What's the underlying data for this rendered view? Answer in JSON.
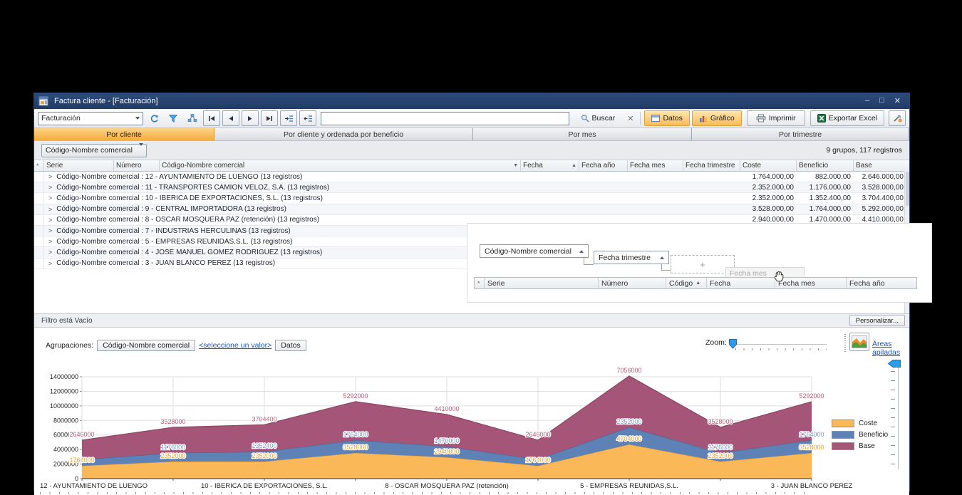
{
  "window": {
    "title": "Factura cliente - [Facturación]",
    "controls": {
      "minimize": "–",
      "maximize": "□",
      "close": "✕"
    }
  },
  "toolbar": {
    "view_selector": "Facturación",
    "search_value": "",
    "buscar": "Buscar",
    "datos": "Datos",
    "grafico": "Gráfico",
    "imprimir": "Imprimir",
    "exportar_excel": "Exportar Excel"
  },
  "tabs": {
    "active_index": 0,
    "items": [
      {
        "label": "Por cliente"
      },
      {
        "label": "Por cliente y ordenada por beneficio"
      },
      {
        "label": "Por mes"
      },
      {
        "label": "Por trimestre"
      }
    ]
  },
  "groupbar": {
    "group_selector": "Código-Nombre comercial",
    "status": "9 grupos, 117 registros"
  },
  "grid": {
    "columns": [
      "Serie",
      "Número",
      "Código-Nombre comercial",
      "Fecha",
      "Fecha año",
      "Fecha mes",
      "Fecha trimestre",
      "Coste",
      "Beneficio",
      "Base"
    ],
    "rows": [
      {
        "label": "Código-Nombre comercial : 12 - AYUNTAMIENTO DE LUENGO (13 registros)",
        "coste": "1.764.000,00",
        "beneficio": "882.000,00",
        "base": "2.646.000,00"
      },
      {
        "label": "Código-Nombre comercial : 11 - TRANSPORTES CAMION VELOZ, S.A. (13 registros)",
        "coste": "2.352.000,00",
        "beneficio": "1.176.000,00",
        "base": "3.528.000,00"
      },
      {
        "label": "Código-Nombre comercial : 10 - IBERICA DE EXPORTACIONES, S.L. (13 registros)",
        "coste": "2.352.000,00",
        "beneficio": "1.352.400,00",
        "base": "3.704.400,00"
      },
      {
        "label": "Código-Nombre comercial : 9 - CENTRAL IMPORTADORA (13 registros)",
        "coste": "3.528.000,00",
        "beneficio": "1.764.000,00",
        "base": "5.292.000,00"
      },
      {
        "label": "Código-Nombre comercial : 8 - OSCAR MOSQUERA PAZ (retención) (13 registros)",
        "coste": "2.940.000,00",
        "beneficio": "1.470.000,00",
        "base": "4.410.000,00"
      },
      {
        "label": "Código-Nombre comercial : 7 - INDUSTRIAS HERCULINAS (13 registros)",
        "coste": "1.764.000,00",
        "beneficio": "882.000,00",
        "base": "2.646.000,00"
      },
      {
        "label": "Código-Nombre comercial : 5 - EMPRESAS REUNIDAS,S.L. (13 registros)",
        "coste": "4.704.000,00",
        "beneficio": "2.352.000,00",
        "base": "7.056.000,00"
      },
      {
        "label": "Código-Nombre comercial : 4 - JOSE MANUEL GOMEZ  RODRIGUEZ (13 registros)",
        "coste": "2.352.000,00",
        "beneficio": "1.176.000,00",
        "base": "3.528.000,00"
      },
      {
        "label": "Código-Nombre comercial : 3 - JUAN BLANCO PEREZ (13 registros)",
        "coste": "3.528.000,00",
        "beneficio": "1.764.000,00",
        "base": "5.292.000,00"
      }
    ]
  },
  "overlay": {
    "chip1": "Código-Nombre comercial",
    "chip2": "Fecha trimestre",
    "drop_plus": "+",
    "ghost": "Fecha mes",
    "columns": [
      "Serie",
      "Número",
      "Código",
      "Fecha",
      "Fecha mes",
      "Fecha año"
    ]
  },
  "filterbar": {
    "status": "Filtro está Vacío",
    "personalizar": "Personalizar..."
  },
  "chartbar": {
    "agrupaciones_label": "Agrupaciones:",
    "group_chip": "Código-Nombre comercial",
    "value_link": "<seleccione un valor>",
    "datos_chip": "Datos",
    "zoom_label": "Zoom:",
    "chart_type_link": "Áreas apiladas"
  },
  "legend": {
    "items": [
      {
        "label": "Coste",
        "color": "#FBB858"
      },
      {
        "label": "Beneficio",
        "color": "#5E81B6"
      },
      {
        "label": "Base",
        "color": "#A55577"
      }
    ]
  },
  "chart_data": {
    "type": "area",
    "stacked": true,
    "categories": [
      "12 - AYUNTAMIENTO DE LUENGO",
      "11 - TRANSPORTES CAMION VELOZ, S.A.",
      "10 - IBERICA DE EXPORTACIONES, S.L.",
      "9 - CENTRAL IMPORTADORA",
      "8 - OSCAR MOSQUERA PAZ (retención)",
      "7 - INDUSTRIAS HERCULINAS",
      "5 - EMPRESAS REUNIDAS,S.L.",
      "4 - JOSE MANUEL GOMEZ  RODRIGUEZ",
      "3 - JUAN BLANCO PEREZ"
    ],
    "x_labels_shown_at": [
      0,
      2,
      4,
      6,
      8
    ],
    "series": [
      {
        "name": "Coste",
        "color": "#FBB858",
        "edge": "#E09A35",
        "label_color": "#E8A33C",
        "values": [
          1764000,
          2352000,
          2352000,
          3528000,
          2940000,
          1764000,
          4704000,
          2352000,
          3528000
        ]
      },
      {
        "name": "Beneficio",
        "color": "#5E81B6",
        "edge": "#46689C",
        "label_color": "#7D99C8",
        "values": [
          882000,
          1176000,
          1352400,
          1764000,
          1470000,
          882000,
          2352000,
          1176000,
          1764000
        ]
      },
      {
        "name": "Base",
        "color": "#A55577",
        "edge": "#8E4663",
        "label_color": "#BE5B75",
        "values": [
          2646000,
          3528000,
          3704400,
          5292000,
          4410000,
          2646000,
          7056000,
          3528000,
          5292000
        ]
      }
    ],
    "hidden_labels": [
      {
        "series": "Beneficio",
        "index": 0
      },
      {
        "series": "Beneficio",
        "index": 5
      }
    ],
    "ylim": [
      0,
      15000000
    ],
    "y_ticks": [
      0,
      2000000,
      4000000,
      6000000,
      8000000,
      10000000,
      12000000,
      14000000
    ],
    "grid": true,
    "legend_position": "right"
  }
}
